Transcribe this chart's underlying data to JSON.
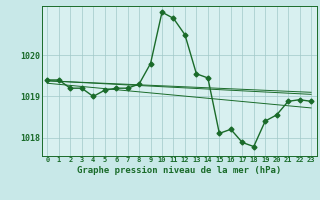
{
  "title": "Graphe pression niveau de la mer (hPa)",
  "bg_color": "#c8e8e8",
  "plot_bg_color": "#d8f0f0",
  "line_color": "#1a6b2a",
  "grid_color": "#a0c8c8",
  "xlim": [
    -0.5,
    23.5
  ],
  "ylim": [
    1017.55,
    1021.2
  ],
  "yticks": [
    1018,
    1019,
    1020
  ],
  "xtick_labels": [
    "0",
    "1",
    "2",
    "3",
    "4",
    "5",
    "6",
    "7",
    "8",
    "9",
    "10",
    "11",
    "12",
    "13",
    "14",
    "15",
    "16",
    "17",
    "18",
    "19",
    "20",
    "21",
    "22",
    "23"
  ],
  "main_y": [
    1019.4,
    1019.4,
    1019.2,
    1019.2,
    1019.0,
    1019.15,
    1019.2,
    1019.2,
    1019.3,
    1019.8,
    1021.05,
    1020.9,
    1020.5,
    1019.55,
    1019.45,
    1018.1,
    1018.2,
    1017.88,
    1017.78,
    1018.4,
    1018.55,
    1018.88,
    1018.92,
    1018.88
  ],
  "trend_lines": [
    {
      "x0": 0,
      "y0": 1019.38,
      "x1": 23,
      "y1": 1019.05
    },
    {
      "x0": 0,
      "y0": 1019.38,
      "x1": 23,
      "y1": 1019.1
    },
    {
      "x0": 0,
      "y0": 1019.32,
      "x1": 23,
      "y1": 1018.72
    }
  ]
}
